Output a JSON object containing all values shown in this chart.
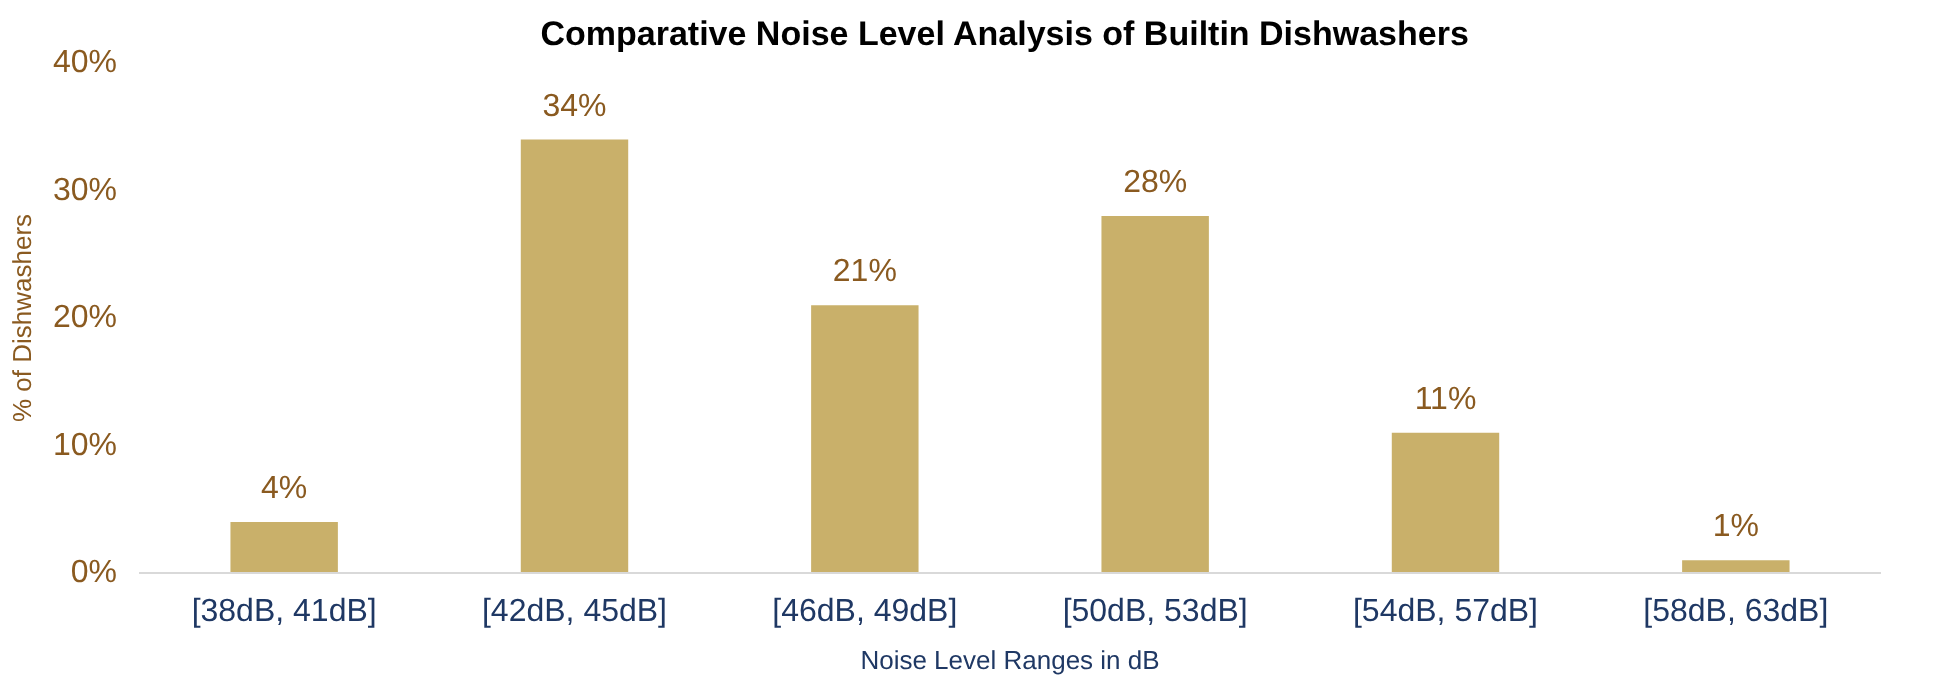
{
  "chart_data": {
    "type": "bar",
    "title": "Comparative  Noise Level Analysis of Builtin Dishwashers",
    "xlabel": "Noise Level Ranges in dB",
    "ylabel": "% of Dishwashers",
    "categories": [
      "[38dB, 41dB]",
      "[42dB, 45dB]",
      "[46dB, 49dB]",
      "[50dB, 53dB]",
      "[54dB, 57dB]",
      "[58dB, 63dB]"
    ],
    "values": [
      4,
      34,
      21,
      28,
      11,
      1
    ],
    "value_labels": [
      "4%",
      "34%",
      "21%",
      "28%",
      "11%",
      "1%"
    ],
    "color": "#c9b06a",
    "ylim": [
      0,
      40
    ],
    "yticks": [
      {
        "value": 0,
        "label": "0%"
      },
      {
        "value": 10,
        "label": "10%"
      },
      {
        "value": 20,
        "label": "20%"
      },
      {
        "value": 30,
        "label": "30%"
      },
      {
        "value": 40,
        "label": "40%"
      }
    ],
    "grid": false
  }
}
